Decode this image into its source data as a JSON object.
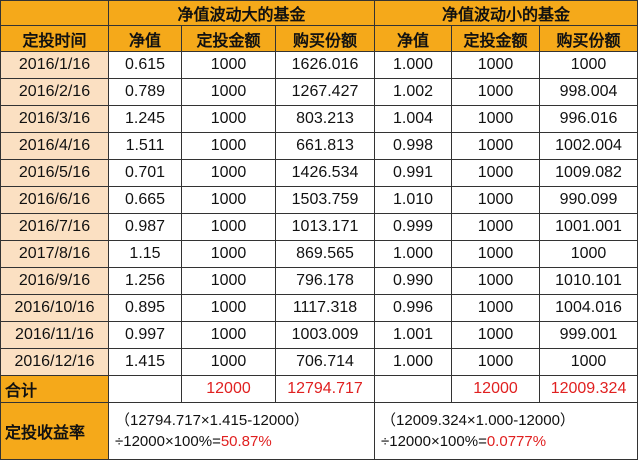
{
  "header": {
    "group_big": "净值波动大的基金",
    "group_small": "净值波动小的基金",
    "col_date": "定投时间",
    "col_nav": "净值",
    "col_amount": "定投金额",
    "col_shares": "购买份额"
  },
  "rows": [
    {
      "date": "2016/1/16",
      "nav_big": "0.615",
      "amt_big": "1000",
      "shares_big": "1626.016",
      "nav_small": "1.000",
      "amt_small": "1000",
      "shares_small": "1000"
    },
    {
      "date": "2016/2/16",
      "nav_big": "0.789",
      "amt_big": "1000",
      "shares_big": "1267.427",
      "nav_small": "1.002",
      "amt_small": "1000",
      "shares_small": "998.004"
    },
    {
      "date": "2016/3/16",
      "nav_big": "1.245",
      "amt_big": "1000",
      "shares_big": "803.213",
      "nav_small": "1.004",
      "amt_small": "1000",
      "shares_small": "996.016"
    },
    {
      "date": "2016/4/16",
      "nav_big": "1.511",
      "amt_big": "1000",
      "shares_big": "661.813",
      "nav_small": "0.998",
      "amt_small": "1000",
      "shares_small": "1002.004"
    },
    {
      "date": "2016/5/16",
      "nav_big": "0.701",
      "amt_big": "1000",
      "shares_big": "1426.534",
      "nav_small": "0.991",
      "amt_small": "1000",
      "shares_small": "1009.082"
    },
    {
      "date": "2016/6/16",
      "nav_big": "0.665",
      "amt_big": "1000",
      "shares_big": "1503.759",
      "nav_small": "1.010",
      "amt_small": "1000",
      "shares_small": "990.099"
    },
    {
      "date": "2016/7/16",
      "nav_big": "0.987",
      "amt_big": "1000",
      "shares_big": "1013.171",
      "nav_small": "0.999",
      "amt_small": "1000",
      "shares_small": "1001.001"
    },
    {
      "date": "2017/8/16",
      "nav_big": "1.15",
      "amt_big": "1000",
      "shares_big": "869.565",
      "nav_small": "1.000",
      "amt_small": "1000",
      "shares_small": "1000"
    },
    {
      "date": "2016/9/16",
      "nav_big": "1.256",
      "amt_big": "1000",
      "shares_big": "796.178",
      "nav_small": "0.990",
      "amt_small": "1000",
      "shares_small": "1010.101"
    },
    {
      "date": "2016/10/16",
      "nav_big": "0.895",
      "amt_big": "1000",
      "shares_big": "1117.318",
      "nav_small": "0.996",
      "amt_small": "1000",
      "shares_small": "1004.016"
    },
    {
      "date": "2016/11/16",
      "nav_big": "0.997",
      "amt_big": "1000",
      "shares_big": "1003.009",
      "nav_small": "1.001",
      "amt_small": "1000",
      "shares_small": "999.001"
    },
    {
      "date": "2016/12/16",
      "nav_big": "1.415",
      "amt_big": "1000",
      "shares_big": "706.714",
      "nav_small": "1.000",
      "amt_small": "1000",
      "shares_small": "1000"
    }
  ],
  "total": {
    "label": "合计",
    "amt_big": "12000",
    "shares_big": "12794.717",
    "amt_small": "12000",
    "shares_small": "12009.324"
  },
  "rate": {
    "label": "定投收益率",
    "big_line1": "（12794.717×1.415-12000）",
    "big_line2_prefix": "÷12000×100%=",
    "big_result": "50.87%",
    "small_line1": "（12009.324×1.000-12000）",
    "small_line2_prefix": "÷12000×100%=",
    "small_result": "0.0777%"
  },
  "colors": {
    "header_orange": "#f5a91a",
    "date_peach": "#fbe0c2",
    "highlight_red": "#e02020"
  }
}
